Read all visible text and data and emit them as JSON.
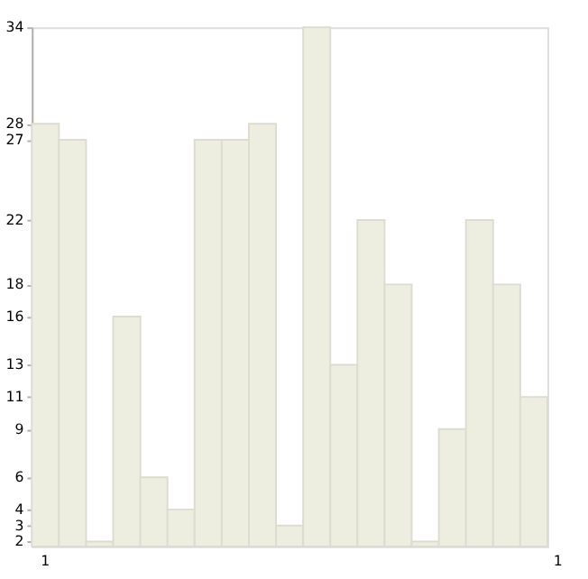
{
  "chart_data": {
    "type": "bar",
    "categories": [
      null,
      null,
      null,
      null,
      null,
      null,
      null,
      null,
      null,
      null,
      null,
      null,
      null,
      null,
      null,
      null,
      null,
      null,
      null
    ],
    "values": [
      28,
      27,
      2,
      16,
      6,
      4,
      27,
      27,
      28,
      3,
      34,
      13,
      22,
      18,
      2,
      9,
      22,
      18,
      11
    ],
    "color": "#eeeee0",
    "ylim": [
      1.7,
      34
    ],
    "yticks": [
      2,
      3,
      4,
      6,
      9,
      11,
      13,
      16,
      18,
      22,
      27,
      28,
      34
    ],
    "annotations": [
      "1",
      "1"
    ],
    "grid": false
  }
}
